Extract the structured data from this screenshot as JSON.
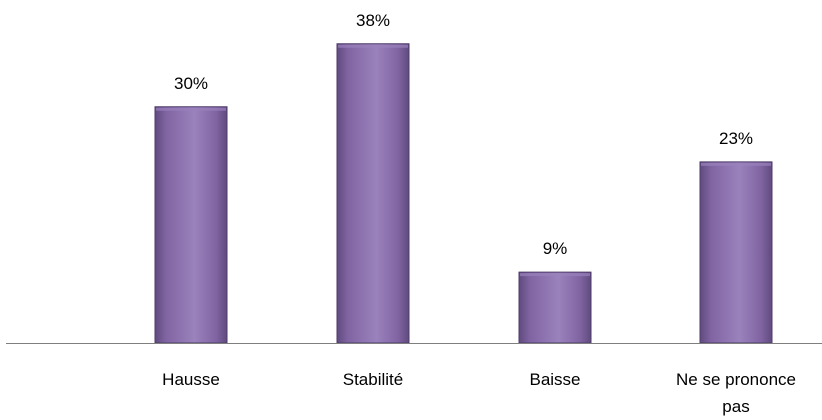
{
  "chart_data": {
    "type": "bar",
    "categories": [
      "Hausse",
      "Stabilité",
      "Baisse",
      "Ne se prononce pas"
    ],
    "category_lines": [
      [
        "Hausse"
      ],
      [
        "Stabilité"
      ],
      [
        "Baisse"
      ],
      [
        "Ne se prononce",
        "pas"
      ]
    ],
    "values": [
      30,
      38,
      9,
      23
    ],
    "data_labels": [
      "30%",
      "38%",
      "9%",
      "23%"
    ],
    "title": "",
    "xlabel": "",
    "ylabel": "",
    "ylim": [
      0,
      40
    ],
    "grid": false,
    "legend": "none",
    "colors": {
      "bar_fill": "#8064A2",
      "bar_highlight": "#9A82BC",
      "bar_shadow": "#5F4A7E",
      "bar_stroke": "#4E3B69",
      "axis": "#7F7F7F"
    }
  }
}
